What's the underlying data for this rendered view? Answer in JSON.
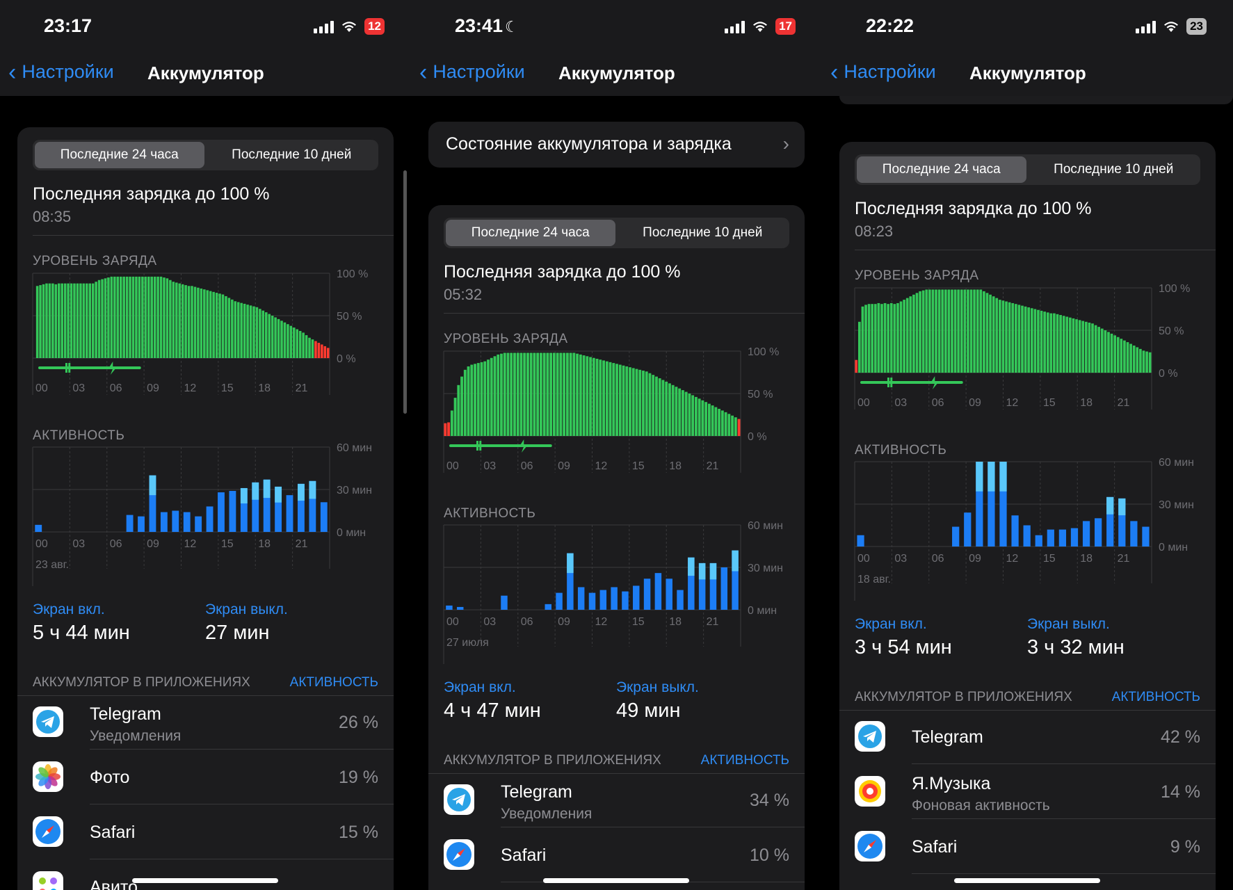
{
  "screens": [
    {
      "status": {
        "time": "23:17",
        "moon": false,
        "battery": "12",
        "battery_low": true
      },
      "nav": {
        "back": "Настройки",
        "title": "Аккумулятор"
      },
      "segment": {
        "active": "Последние 24 часа",
        "inactive": "Последние 10 дней"
      },
      "last_charge": {
        "label": "Последняя зарядка до 100 %",
        "time": "08:35"
      },
      "level_caption": "УРОВЕНЬ ЗАРЯДА",
      "activity_caption": "АКТИВНОСТЬ",
      "level_axis": [
        "100 %",
        "50 %",
        "0 %"
      ],
      "activity_axis": [
        "60 мин",
        "30 мин",
        "0 мин"
      ],
      "hours": [
        "00",
        "03",
        "06",
        "09",
        "12",
        "15",
        "18",
        "21"
      ],
      "date": "23 авг.",
      "screen_on": {
        "label": "Экран вкл.",
        "value": "5 ч 44 мин"
      },
      "screen_off": {
        "label": "Экран выкл.",
        "value": "27 мин"
      },
      "apps_header": {
        "title": "АККУМУЛЯТОР В ПРИЛОЖЕНИЯХ",
        "link": "АКТИВНОСТЬ"
      },
      "apps": [
        {
          "name": "Telegram",
          "desc": "Уведомления",
          "percent": "26 %",
          "icon": "telegram-icon"
        },
        {
          "name": "Фото",
          "desc": "",
          "percent": "19 %",
          "icon": "photos-icon"
        },
        {
          "name": "Safari",
          "desc": "",
          "percent": "15 %",
          "icon": "safari-icon"
        },
        {
          "name": "Авито",
          "desc": "",
          "percent": "",
          "icon": "avito-icon"
        }
      ],
      "chart_data": {
        "type": "bar",
        "level": {
          "ylim": [
            0,
            100
          ],
          "values": [
            0,
            85,
            86,
            87,
            88,
            88,
            88,
            87,
            88,
            88,
            88,
            88,
            88,
            88,
            88,
            88,
            88,
            88,
            88,
            88,
            90,
            92,
            93,
            94,
            95,
            96,
            96,
            96,
            96,
            96,
            96,
            96,
            96,
            96,
            96,
            96,
            96,
            96,
            96,
            96,
            96,
            96,
            95,
            94,
            92,
            90,
            89,
            88,
            87,
            86,
            85,
            85,
            84,
            83,
            82,
            81,
            80,
            79,
            78,
            77,
            76,
            75,
            73,
            71,
            69,
            67,
            66,
            65,
            64,
            63,
            62,
            61,
            60,
            58,
            56,
            54,
            52,
            50,
            48,
            46,
            44,
            42,
            40,
            38,
            36,
            34,
            32,
            30,
            27,
            24,
            22,
            20,
            18,
            16,
            14,
            12
          ]
        },
        "activity": {
          "ylim": [
            0,
            60
          ],
          "values": [
            5,
            0,
            0,
            0,
            0,
            0,
            0,
            0,
            12,
            11,
            40,
            14,
            15,
            14,
            11,
            18,
            28,
            29,
            31,
            35,
            37,
            32,
            26,
            34,
            36,
            21
          ]
        }
      }
    },
    {
      "status": {
        "time": "23:41",
        "moon": true,
        "battery": "17",
        "battery_low": true
      },
      "nav": {
        "back": "Настройки",
        "title": "Аккумулятор"
      },
      "health_row": "Состояние аккумулятора и зарядка",
      "segment": {
        "active": "Последние 24 часа",
        "inactive": "Последние 10 дней"
      },
      "last_charge": {
        "label": "Последняя зарядка до 100 %",
        "time": "05:32"
      },
      "level_caption": "УРОВЕНЬ ЗАРЯДА",
      "activity_caption": "АКТИВНОСТЬ",
      "level_axis": [
        "100 %",
        "50 %",
        "0 %"
      ],
      "activity_axis": [
        "60 мин",
        "30 мин",
        "0 мин"
      ],
      "hours": [
        "00",
        "03",
        "06",
        "09",
        "12",
        "15",
        "18",
        "21"
      ],
      "date": "27 июля",
      "screen_on": {
        "label": "Экран вкл.",
        "value": "4 ч 47 мин"
      },
      "screen_off": {
        "label": "Экран выкл.",
        "value": "49 мин"
      },
      "apps_header": {
        "title": "АККУМУЛЯТОР В ПРИЛОЖЕНИЯХ",
        "link": "АКТИВНОСТЬ"
      },
      "apps": [
        {
          "name": "Telegram",
          "desc": "Уведомления",
          "percent": "34 %",
          "icon": "telegram-icon"
        },
        {
          "name": "Safari",
          "desc": "",
          "percent": "10 %",
          "icon": "safari-icon"
        }
      ],
      "chart_data": {
        "type": "bar",
        "level": {
          "ylim": [
            0,
            100
          ],
          "values": [
            15,
            16,
            30,
            45,
            60,
            70,
            78,
            82,
            84,
            85,
            86,
            87,
            88,
            90,
            92,
            94,
            96,
            97,
            98,
            98,
            98,
            98,
            98,
            98,
            98,
            98,
            98,
            98,
            98,
            98,
            98,
            98,
            98,
            98,
            98,
            98,
            98,
            98,
            98,
            98,
            97,
            96,
            95,
            94,
            93,
            92,
            91,
            90,
            89,
            88,
            87,
            86,
            85,
            84,
            83,
            82,
            81,
            80,
            79,
            78,
            77,
            76,
            74,
            72,
            70,
            68,
            66,
            64,
            62,
            60,
            58,
            56,
            54,
            52,
            50,
            48,
            46,
            44,
            42,
            40,
            38,
            36,
            34,
            32,
            30,
            28,
            26,
            24,
            22,
            20
          ]
        },
        "activity": {
          "ylim": [
            0,
            60
          ],
          "values": [
            3,
            2,
            0,
            0,
            0,
            10,
            0,
            0,
            0,
            4,
            12,
            40,
            16,
            12,
            14,
            16,
            13,
            17,
            22,
            26,
            22,
            14,
            37,
            33,
            33,
            30,
            42
          ]
        }
      }
    },
    {
      "status": {
        "time": "22:22",
        "moon": false,
        "battery": "23",
        "battery_low": false
      },
      "nav": {
        "back": "Настройки",
        "title": "Аккумулятор"
      },
      "segment": {
        "active": "Последние 24 часа",
        "inactive": "Последние 10 дней"
      },
      "last_charge": {
        "label": "Последняя зарядка до 100 %",
        "time": "08:23"
      },
      "level_caption": "УРОВЕНЬ ЗАРЯДА",
      "activity_caption": "АКТИВНОСТЬ",
      "level_axis": [
        "100 %",
        "50 %",
        "0 %"
      ],
      "activity_axis": [
        "60 мин",
        "30 мин",
        "0 мин"
      ],
      "hours": [
        "00",
        "03",
        "06",
        "09",
        "12",
        "15",
        "18",
        "21"
      ],
      "date": "18 авг.",
      "screen_on": {
        "label": "Экран вкл.",
        "value": "3 ч 54 мин"
      },
      "screen_off": {
        "label": "Экран выкл.",
        "value": "3 ч 32 мин"
      },
      "apps_header": {
        "title": "АККУМУЛЯТОР В ПРИЛОЖЕНИЯХ",
        "link": "АКТИВНОСТЬ"
      },
      "apps": [
        {
          "name": "Telegram",
          "desc": "",
          "percent": "42 %",
          "icon": "telegram-icon"
        },
        {
          "name": "Я.Музыка",
          "desc": "Фоновая активность",
          "percent": "14 %",
          "icon": "yandex-music-icon"
        },
        {
          "name": "Safari",
          "desc": "",
          "percent": "9 %",
          "icon": "safari-icon"
        }
      ],
      "chart_data": {
        "type": "bar",
        "level": {
          "ylim": [
            0,
            100
          ],
          "values": [
            15,
            60,
            78,
            80,
            81,
            81,
            81,
            82,
            81,
            82,
            81,
            82,
            81,
            82,
            84,
            86,
            88,
            90,
            92,
            94,
            96,
            97,
            98,
            98,
            98,
            98,
            98,
            98,
            98,
            98,
            98,
            98,
            98,
            98,
            98,
            98,
            98,
            98,
            98,
            98,
            96,
            94,
            92,
            90,
            88,
            86,
            85,
            84,
            83,
            82,
            81,
            80,
            79,
            78,
            77,
            76,
            75,
            74,
            73,
            72,
            71,
            70,
            70,
            69,
            68,
            67,
            66,
            65,
            64,
            63,
            62,
            61,
            60,
            59,
            58,
            56,
            54,
            52,
            50,
            48,
            46,
            44,
            42,
            40,
            38,
            36,
            34,
            32,
            30,
            28,
            26,
            25,
            24
          ]
        },
        "activity": {
          "ylim": [
            0,
            60
          ],
          "values": [
            8,
            0,
            0,
            0,
            0,
            0,
            0,
            0,
            14,
            24,
            60,
            60,
            60,
            22,
            15,
            8,
            12,
            12,
            13,
            18,
            20,
            35,
            34,
            18,
            14
          ]
        }
      }
    }
  ]
}
